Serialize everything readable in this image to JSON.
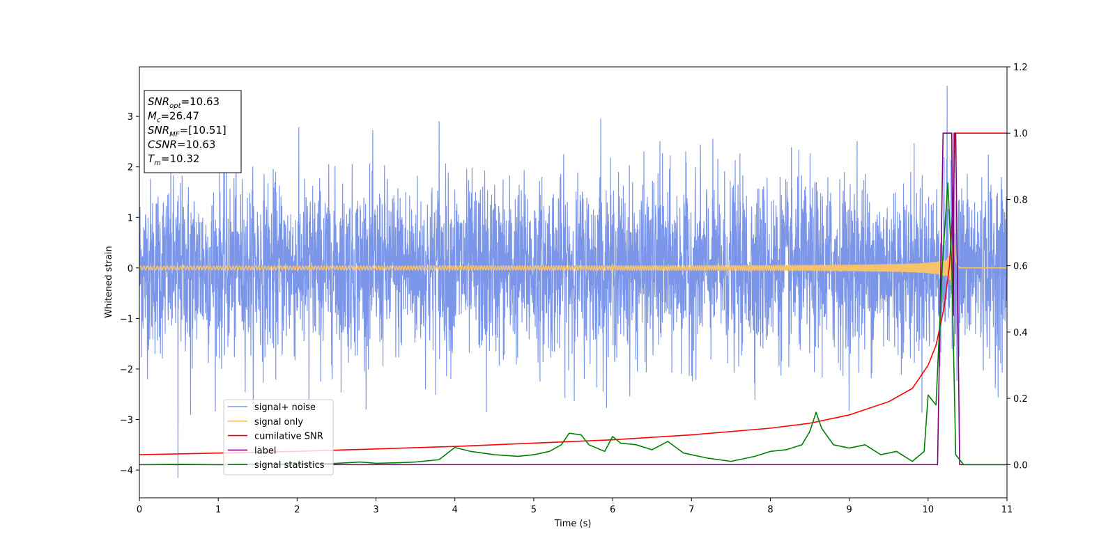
{
  "chart_data": {
    "type": "line",
    "title": "",
    "xlabel": "Time (s)",
    "ylabel": "Whitened strain",
    "xlim": [
      0,
      11
    ],
    "ylim_left": [
      -4.55,
      3.98
    ],
    "ylim_right": [
      -0.1,
      1.2
    ],
    "x_ticks": [
      0,
      1,
      2,
      3,
      4,
      5,
      6,
      7,
      8,
      9,
      10,
      11
    ],
    "y_ticks_left": [
      -4,
      -3,
      -2,
      -1,
      0,
      1,
      2,
      3
    ],
    "y_ticks_right": [
      0.0,
      0.2,
      0.4,
      0.6,
      0.8,
      1.0,
      1.2
    ],
    "y_tick_labels_right": [
      "0.0",
      "0.2",
      "0.4",
      "0.6",
      "0.8",
      "1.0",
      "1.2"
    ],
    "grid": false,
    "legend_position": "lower-left",
    "info_box": {
      "lines": [
        {
          "name": "SNR",
          "sub": "opt",
          "value": "=10.63"
        },
        {
          "name": "M",
          "sub": "c",
          "value": "=26.47"
        },
        {
          "name": "SNR",
          "sub": "MF",
          "value": "=[10.51]"
        },
        {
          "name": "CSNR",
          "sub": "",
          "value": "=10.63"
        },
        {
          "name": "T",
          "sub": "m",
          "value": "=10.32"
        }
      ]
    },
    "series": [
      {
        "name": "signal+ noise",
        "color": "#7b96e8",
        "axis": "left",
        "kind": "noise",
        "std": 0.85,
        "x_range": [
          0,
          11
        ],
        "spikes": [
          {
            "x": 0.49,
            "y": -4.15
          },
          {
            "x": 0.65,
            "y": -2.9
          },
          {
            "x": 2.15,
            "y": -2.85
          },
          {
            "x": 3.8,
            "y": 2.9
          },
          {
            "x": 4.4,
            "y": -2.85
          },
          {
            "x": 5.85,
            "y": 2.95
          },
          {
            "x": 6.6,
            "y": 2.5
          },
          {
            "x": 9.1,
            "y": 2.5
          },
          {
            "x": 10.24,
            "y": 3.6
          }
        ]
      },
      {
        "name": "signal only",
        "color": "#f6c36a",
        "axis": "left",
        "kind": "chirp",
        "t_merge": 10.32
      },
      {
        "name": "cumilative SNR",
        "color": "#ff0000",
        "axis": "right",
        "points": [
          [
            0,
            0.03
          ],
          [
            2,
            0.04
          ],
          [
            4,
            0.055
          ],
          [
            5,
            0.065
          ],
          [
            6,
            0.075
          ],
          [
            7,
            0.09
          ],
          [
            8,
            0.11
          ],
          [
            8.5,
            0.125
          ],
          [
            9,
            0.15
          ],
          [
            9.5,
            0.19
          ],
          [
            9.8,
            0.23
          ],
          [
            10.0,
            0.3
          ],
          [
            10.1,
            0.36
          ],
          [
            10.2,
            0.47
          ],
          [
            10.27,
            0.6
          ],
          [
            10.32,
            0.8
          ],
          [
            10.34,
            1.0
          ],
          [
            11,
            1.0
          ]
        ]
      },
      {
        "name": "label",
        "color": "#800080",
        "axis": "right",
        "points": [
          [
            0,
            0.0
          ],
          [
            10.12,
            0.0
          ],
          [
            10.19,
            1.0
          ],
          [
            10.3,
            1.0
          ],
          [
            10.32,
            0.45
          ],
          [
            10.33,
            1.0
          ],
          [
            10.35,
            1.0
          ],
          [
            10.4,
            0.0
          ],
          [
            11,
            0.0
          ]
        ]
      },
      {
        "name": "signal statistics",
        "color": "#008000",
        "axis": "right",
        "points": [
          [
            0,
            0.0
          ],
          [
            0.5,
            0.001
          ],
          [
            1.0,
            0.0
          ],
          [
            1.5,
            0.001
          ],
          [
            2.0,
            0.002
          ],
          [
            2.5,
            0.004
          ],
          [
            2.8,
            0.008
          ],
          [
            3.0,
            0.004
          ],
          [
            3.3,
            0.006
          ],
          [
            3.5,
            0.008
          ],
          [
            3.8,
            0.015
          ],
          [
            4.0,
            0.052
          ],
          [
            4.2,
            0.04
          ],
          [
            4.5,
            0.03
          ],
          [
            4.8,
            0.025
          ],
          [
            5.0,
            0.03
          ],
          [
            5.2,
            0.04
          ],
          [
            5.35,
            0.06
          ],
          [
            5.45,
            0.095
          ],
          [
            5.6,
            0.09
          ],
          [
            5.7,
            0.06
          ],
          [
            5.9,
            0.04
          ],
          [
            6.0,
            0.085
          ],
          [
            6.1,
            0.065
          ],
          [
            6.3,
            0.06
          ],
          [
            6.5,
            0.045
          ],
          [
            6.7,
            0.07
          ],
          [
            6.9,
            0.035
          ],
          [
            7.2,
            0.02
          ],
          [
            7.5,
            0.01
          ],
          [
            7.8,
            0.025
          ],
          [
            8.0,
            0.04
          ],
          [
            8.2,
            0.045
          ],
          [
            8.4,
            0.06
          ],
          [
            8.5,
            0.1
          ],
          [
            8.58,
            0.158
          ],
          [
            8.65,
            0.11
          ],
          [
            8.8,
            0.06
          ],
          [
            9.0,
            0.05
          ],
          [
            9.2,
            0.06
          ],
          [
            9.4,
            0.03
          ],
          [
            9.6,
            0.04
          ],
          [
            9.8,
            0.01
          ],
          [
            9.95,
            0.04
          ],
          [
            10.0,
            0.21
          ],
          [
            10.1,
            0.18
          ],
          [
            10.18,
            0.6
          ],
          [
            10.25,
            0.85
          ],
          [
            10.3,
            0.6
          ],
          [
            10.35,
            0.03
          ],
          [
            10.45,
            0.0
          ],
          [
            11,
            0.0
          ]
        ]
      }
    ]
  }
}
